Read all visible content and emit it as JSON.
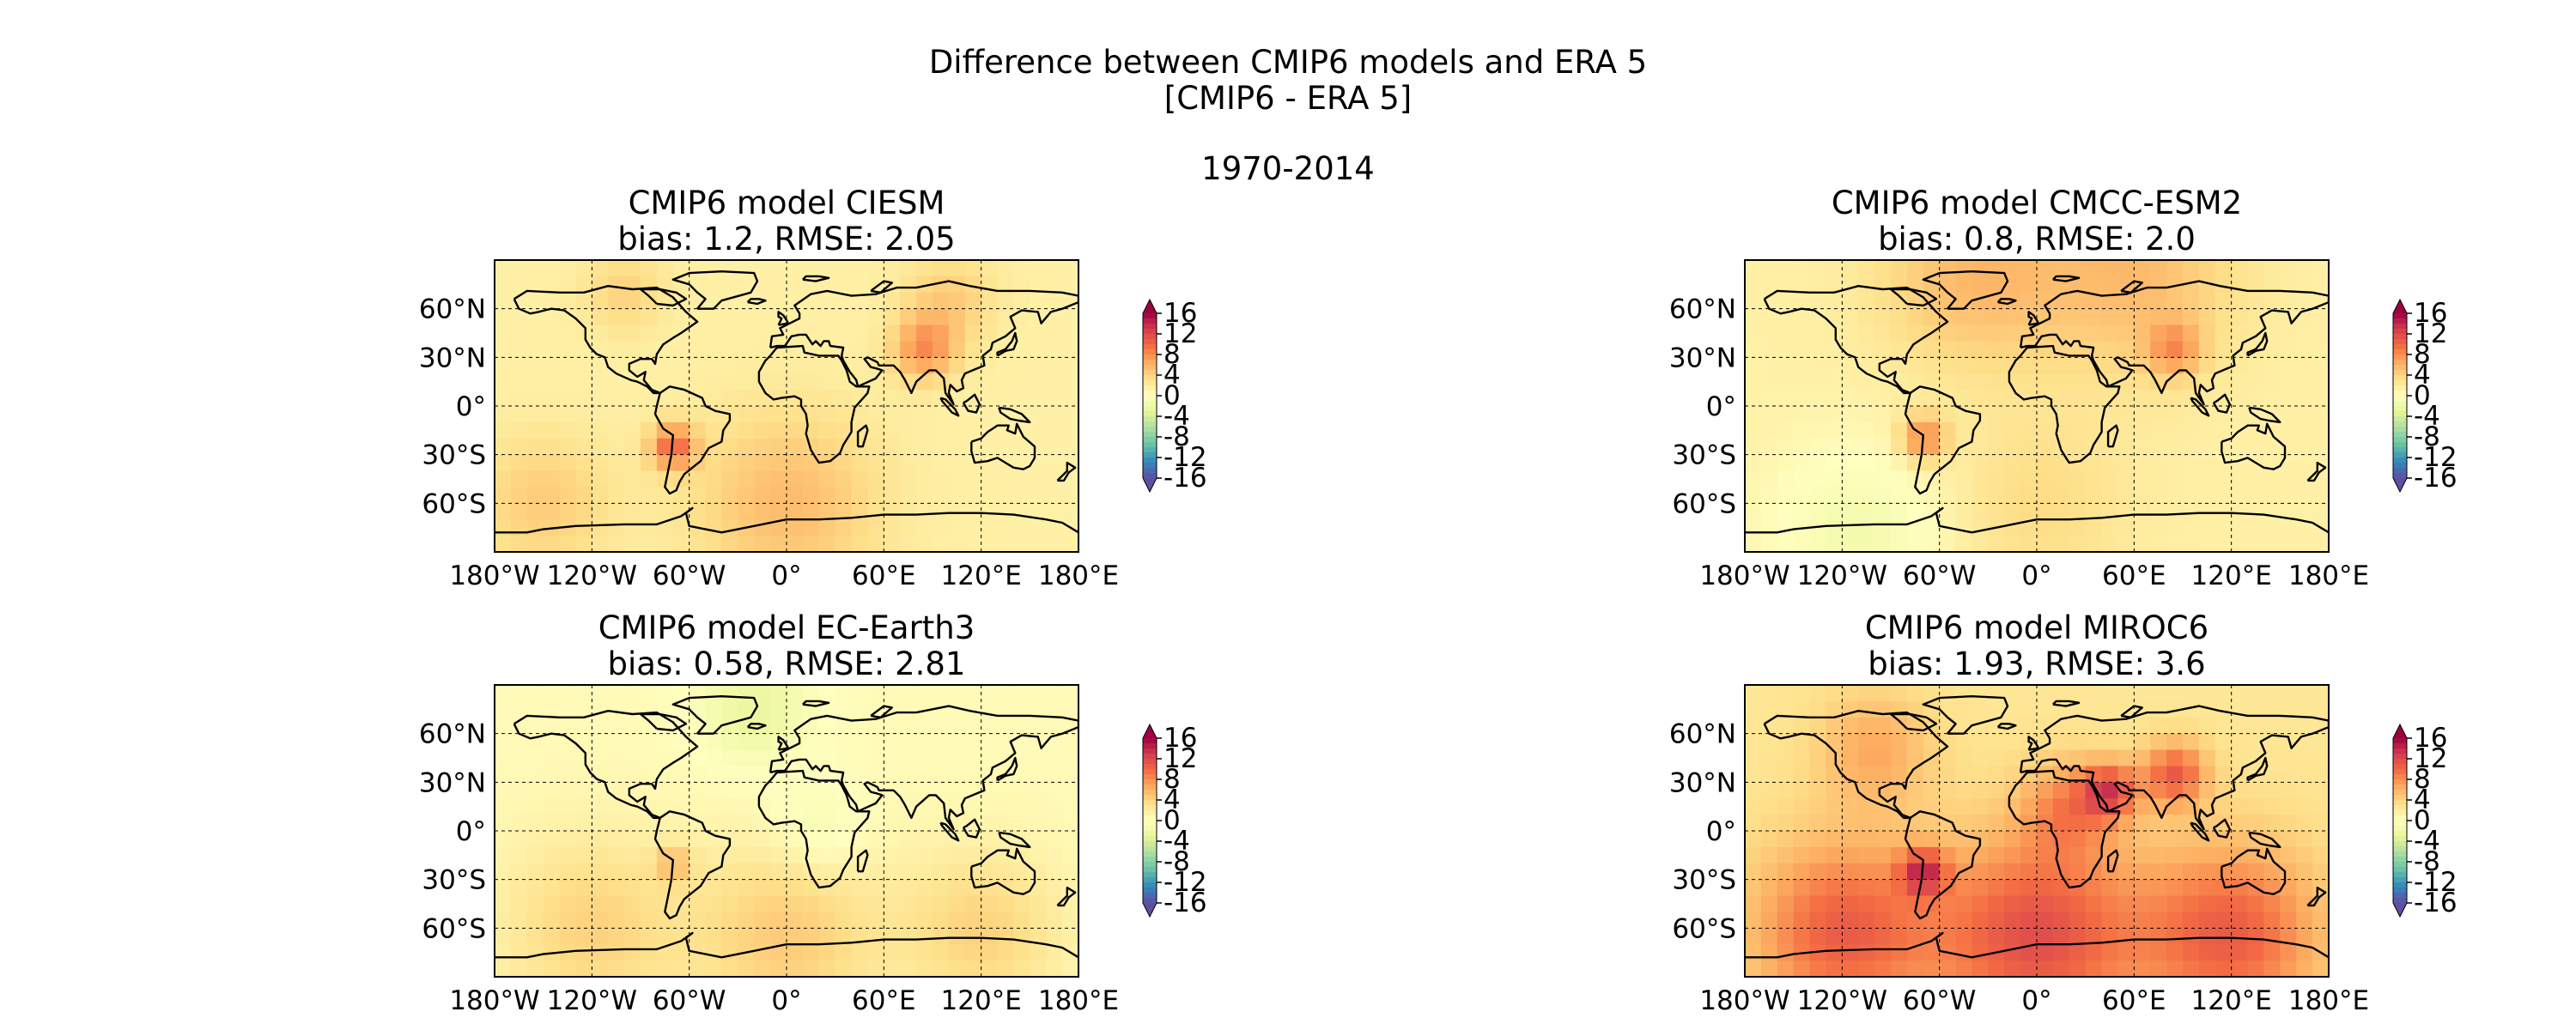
{
  "figure": {
    "title_line1": "Difference between CMIP6 models and ERA 5",
    "title_line2": "[CMIP6 - ERA 5]",
    "period": "1970-2014"
  },
  "colorbar": {
    "ticks": [
      "16",
      "12",
      "8",
      "4",
      "0",
      "-4",
      "-8",
      "-12",
      "-16"
    ],
    "colormap": "Spectral_r",
    "colors": [
      "#5e4fa2",
      "#3288bd",
      "#66c2a5",
      "#abdda4",
      "#e6f598",
      "#ffffbf",
      "#fee08b",
      "#fdae61",
      "#f46d43",
      "#d53e4f",
      "#9e0142"
    ]
  },
  "axes": {
    "lon_ticks": [
      "180°W",
      "120°W",
      "60°W",
      "0°",
      "60°E",
      "120°E",
      "180°E"
    ],
    "lat_ticks": [
      "60°N",
      "30°N",
      "0°",
      "30°S",
      "60°S"
    ],
    "grid": "dashed"
  },
  "panels": [
    {
      "title": "CMIP6 model CIESM",
      "stats": "bias:  1.2, RMSE: 2.05"
    },
    {
      "title": "CMIP6 model CMCC-ESM2",
      "stats": "bias:  0.8, RMSE: 2.0"
    },
    {
      "title": "CMIP6 model EC-Earth3",
      "stats": "bias:  0.58, RMSE: 2.81"
    },
    {
      "title": "CMIP6 model MIROC6",
      "stats": "bias:  1.93, RMSE: 3.6"
    }
  ],
  "chart_data": [
    {
      "type": "heatmap",
      "title": "CMIP6 model CIESM",
      "subtitle": "bias:  1.2, RMSE: 2.05",
      "bias": 1.2,
      "rmse": 2.05,
      "colorbar_range": [
        -16,
        16
      ],
      "xlim": [
        -180,
        180
      ],
      "ylim": [
        -90,
        90
      ],
      "background_value": 1.5
    },
    {
      "type": "heatmap",
      "title": "CMIP6 model CMCC-ESM2",
      "subtitle": "bias:  0.8, RMSE: 2.0",
      "bias": 0.8,
      "rmse": 2.0,
      "colorbar_range": [
        -16,
        16
      ],
      "xlim": [
        -180,
        180
      ],
      "ylim": [
        -90,
        90
      ],
      "background_value": 1.5
    },
    {
      "type": "heatmap",
      "title": "CMIP6 model EC-Earth3",
      "subtitle": "bias:  0.58, RMSE: 2.81",
      "bias": 0.58,
      "rmse": 2.81,
      "colorbar_range": [
        -16,
        16
      ],
      "xlim": [
        -180,
        180
      ],
      "ylim": [
        -90,
        90
      ],
      "background_value": 0.5
    },
    {
      "type": "heatmap",
      "title": "CMIP6 model MIROC6",
      "subtitle": "bias:  1.93, RMSE: 3.6",
      "bias": 1.93,
      "rmse": 3.6,
      "colorbar_range": [
        -16,
        16
      ],
      "xlim": [
        -180,
        180
      ],
      "ylim": [
        -90,
        90
      ],
      "background_value": 2.5
    }
  ]
}
